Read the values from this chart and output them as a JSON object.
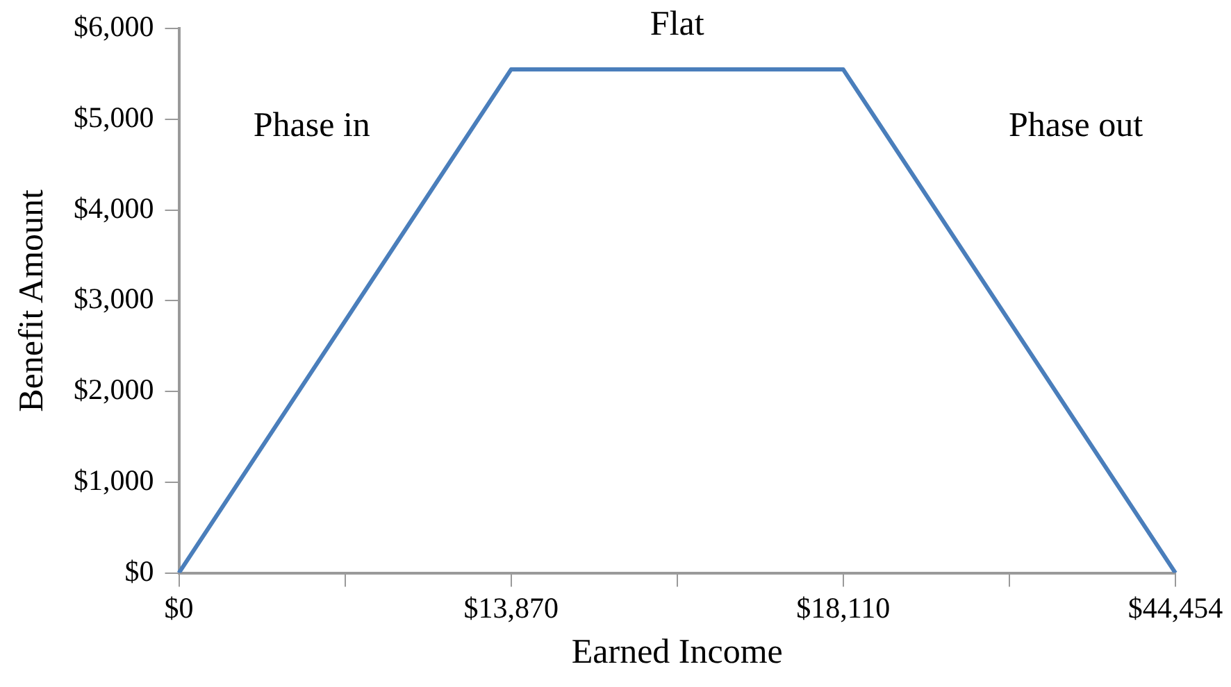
{
  "chart_data": {
    "type": "line",
    "xlabel": "Earned Income",
    "ylabel": "Benefit Amount",
    "categories": [
      "$0",
      null,
      "$13,870",
      null,
      "$18,110",
      null,
      "$44,454"
    ],
    "series": [
      {
        "color": "#4a7ebb",
        "values": [
          0,
          null,
          5550,
          null,
          5550,
          null,
          0
        ]
      }
    ],
    "ylim": [
      0,
      6000
    ],
    "yticks": [
      {
        "value": 0,
        "label": "$0"
      },
      {
        "value": 1000,
        "label": "$1,000"
      },
      {
        "value": 2000,
        "label": "$2,000"
      },
      {
        "value": 3000,
        "label": "$3,000"
      },
      {
        "value": 4000,
        "label": "$4,000"
      },
      {
        "value": 5000,
        "label": "$5,000"
      },
      {
        "value": 6000,
        "label": "$6,000"
      }
    ],
    "annotations": [
      "Phase in",
      "Flat",
      "Phase out"
    ],
    "grid": false,
    "legend": false,
    "marker": "none",
    "line_style": "solid"
  }
}
